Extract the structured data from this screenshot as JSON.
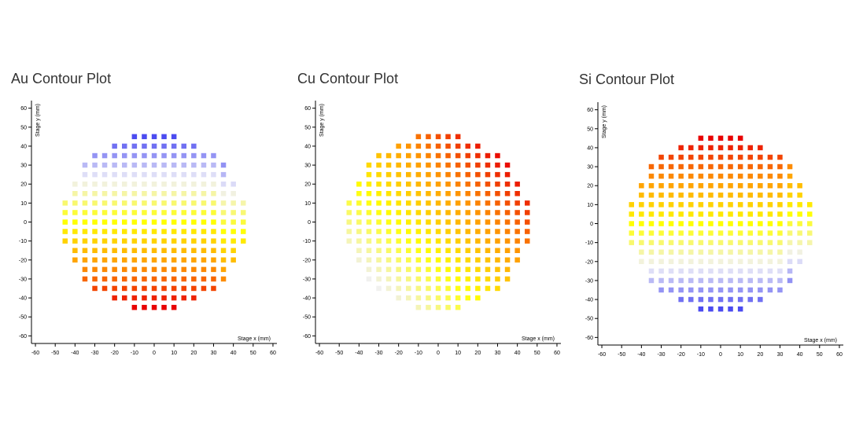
{
  "chart_data": [
    {
      "type": "heatmap",
      "title": "Au Contour Plot",
      "xlabel": "Stage x (mm)",
      "ylabel": "Stage y (mm)",
      "xlim": [
        -62,
        62
      ],
      "ylim": [
        -64,
        64
      ],
      "xticks": [
        -60,
        -50,
        -40,
        -30,
        -20,
        -10,
        0,
        10,
        20,
        30,
        40,
        50,
        60
      ],
      "yticks": [
        60,
        50,
        40,
        30,
        20,
        10,
        0,
        -10,
        -20,
        -30,
        -40,
        -50,
        -60
      ],
      "grid": false,
      "color_scale": [
        "#4b4bf0",
        "#f0f0f8",
        "#ffff00",
        "#ff9900",
        "#e80000"
      ],
      "gradient_direction": "top-to-bottom",
      "grid_spacing_mm": 5
    },
    {
      "type": "heatmap",
      "title": "Cu Contour Plot",
      "xlabel": "Stage x (mm)",
      "ylabel": "Stage y (mm)",
      "xlim": [
        -62,
        62
      ],
      "ylim": [
        -64,
        64
      ],
      "xticks": [
        -60,
        -50,
        -40,
        -30,
        -20,
        -10,
        0,
        10,
        20,
        30,
        40,
        50,
        60
      ],
      "yticks": [
        60,
        50,
        40,
        30,
        20,
        10,
        0,
        -10,
        -20,
        -30,
        -40,
        -50,
        -60
      ],
      "grid": false,
      "color_scale": [
        "#4b4bf0",
        "#f0f0f8",
        "#ffff00",
        "#ff9900",
        "#e80000"
      ],
      "gradient_direction": "lower-left-to-upper-right",
      "grid_spacing_mm": 5
    },
    {
      "type": "heatmap",
      "title": "Si Contour Plot",
      "xlabel": "Stage x (mm)",
      "ylabel": "Stage y (mm)",
      "xlim": [
        -62,
        62
      ],
      "ylim": [
        -64,
        64
      ],
      "xticks": [
        -60,
        -50,
        -40,
        -30,
        -20,
        -10,
        0,
        10,
        20,
        30,
        40,
        50,
        60
      ],
      "yticks": [
        60,
        50,
        40,
        30,
        20,
        10,
        0,
        -10,
        -20,
        -30,
        -40,
        -50,
        -60
      ],
      "grid": false,
      "color_scale": [
        "#4b4bf0",
        "#f0f0f8",
        "#ffff00",
        "#ff9900",
        "#e80000"
      ],
      "gradient_direction": "bottom-to-top",
      "grid_spacing_mm": 5
    }
  ]
}
